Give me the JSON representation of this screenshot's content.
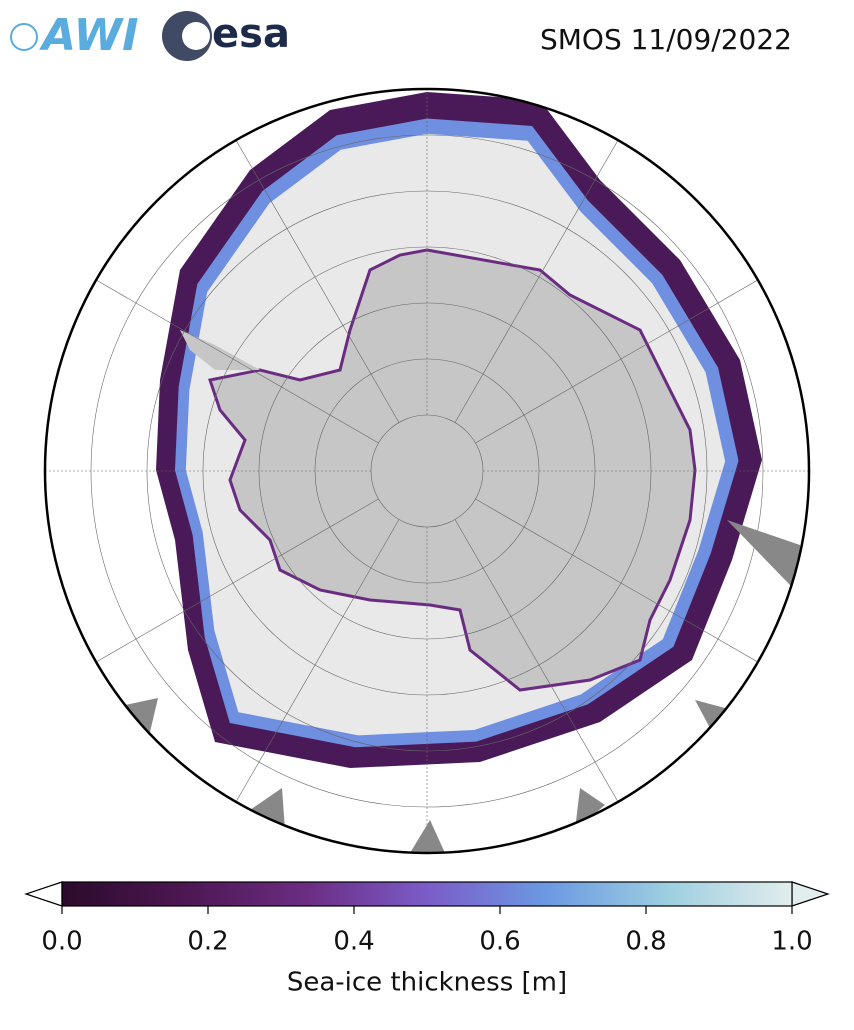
{
  "logos": [
    "AWI",
    "esa"
  ],
  "title": "SMOS 11/09/2022",
  "colorbar": {
    "label": "Sea-ice thickness [m]",
    "lim": [
      0,
      1
    ],
    "ticks": [
      {
        "value": 0,
        "label": "0.0"
      },
      0.2,
      0.4,
      0.6,
      {
        "value": 0.8,
        "label": "0.8"
      },
      {
        "value": 1,
        "label": "1.0"
      }
    ],
    "colors": [
      "#2b0b2b",
      "#4c1752",
      "#6b2c82",
      "#7b5cc8",
      "#6b9ae2",
      "#9fcfe0",
      "#e2eded"
    ]
  }
}
